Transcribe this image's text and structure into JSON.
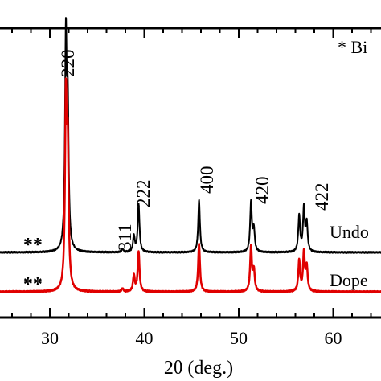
{
  "chart_data": {
    "type": "line",
    "xlabel": "2θ (deg.)",
    "ylabel": "",
    "xlim": [
      20,
      68
    ],
    "x_ticks": [
      30,
      40,
      50,
      60
    ],
    "x_tick_labels": [
      "30",
      "40",
      "50",
      "60"
    ],
    "legend": {
      "text": "* Bi",
      "placement": "top-right"
    },
    "series": [
      {
        "name": "Undo",
        "color": "#000000",
        "baseline": 0
      },
      {
        "name": "Dope",
        "color": "#e00000",
        "baseline": 0
      }
    ],
    "peaks": [
      {
        "position": 31.7,
        "label": "220",
        "undoped_height": 255,
        "doped_height": 228,
        "undoped_label_visible": true
      },
      {
        "position": 31.9,
        "label": "",
        "undoped_height": 158,
        "doped_height": 160
      },
      {
        "position": 37.7,
        "label": "311",
        "undoped_height": 4,
        "doped_height": 4
      },
      {
        "position": 38.9,
        "label": "",
        "undoped_height": 20,
        "doped_height": 20
      },
      {
        "position": 39.4,
        "label": "222",
        "undoped_height": 60,
        "doped_height": 50
      },
      {
        "position": 45.8,
        "label": "400",
        "undoped_height": 65,
        "doped_height": 60
      },
      {
        "position": 51.3,
        "label": "420",
        "undoped_height": 62,
        "doped_height": 55
      },
      {
        "position": 51.6,
        "label": "",
        "undoped_height": 28,
        "doped_height": 26
      },
      {
        "position": 56.4,
        "label": "",
        "undoped_height": 45,
        "doped_height": 38
      },
      {
        "position": 56.9,
        "label": "422",
        "undoped_height": 55,
        "doped_height": 48
      },
      {
        "position": 57.2,
        "label": "",
        "undoped_height": 35,
        "doped_height": 30
      }
    ],
    "impurity_markers": {
      "symbol": "**",
      "position": 28.2
    }
  }
}
